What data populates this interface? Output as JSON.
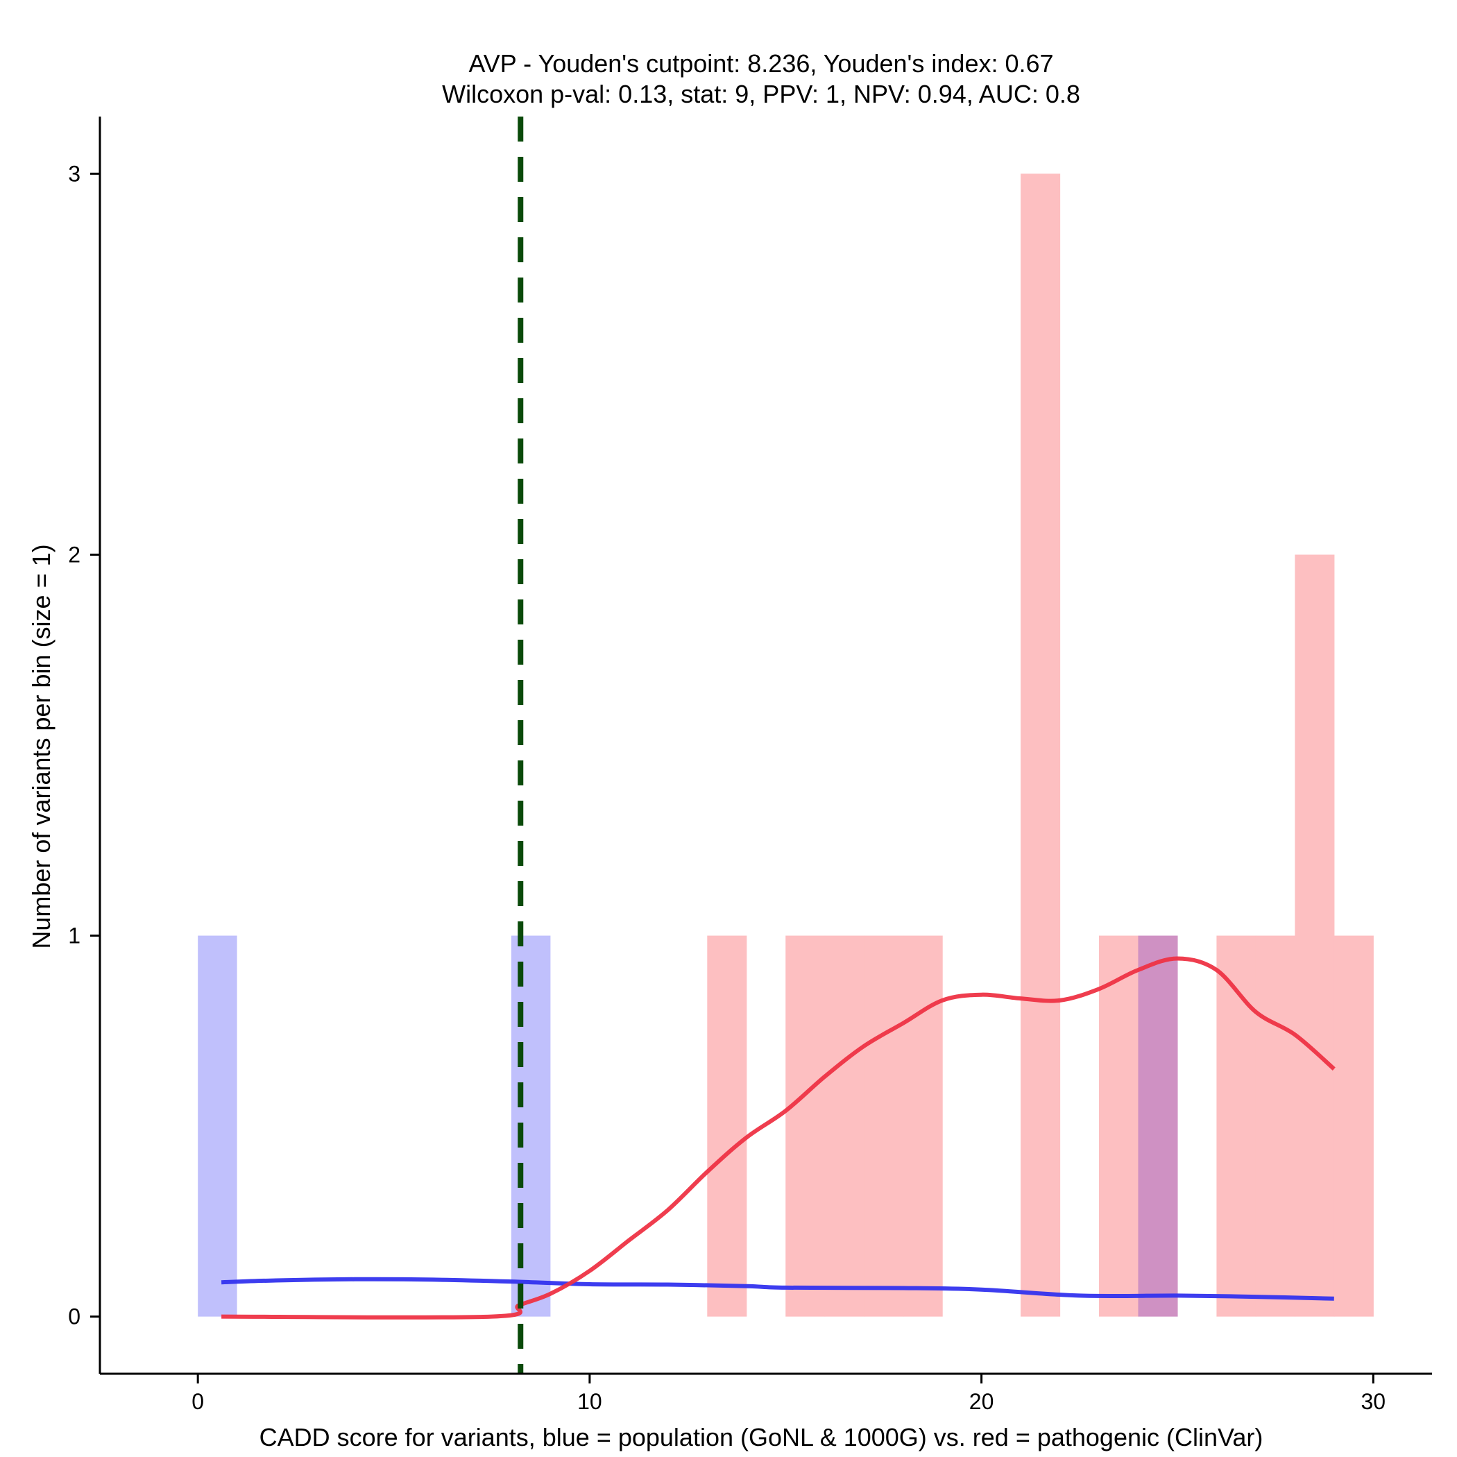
{
  "chart_data": {
    "type": "bar",
    "title_line1": "AVP - Youden's cutpoint: 8.236, Youden's index: 0.67",
    "title_line2": "Wilcoxon p-val: 0.13, stat: 9, PPV: 1, NPV: 0.94, AUC: 0.8",
    "xlabel": "CADD score for variants, blue = population (GoNL & 1000G) vs. red = pathogenic (ClinVar)",
    "ylabel": "Number of variants per bin (size = 1)",
    "xlim": [
      -2.5,
      31.5
    ],
    "ylim": [
      -0.15,
      3.15
    ],
    "x_ticks": [
      0,
      10,
      20,
      30
    ],
    "x_tick_labels": [
      "0",
      "10",
      "20",
      "30"
    ],
    "y_ticks": [
      0,
      1,
      2,
      3
    ],
    "y_tick_labels": [
      "0",
      "1",
      "2",
      "3"
    ],
    "cutpoint": 8.236,
    "colors": {
      "population_bar": "#c0c0fc",
      "pathogenic_bar": "#fdbfc1",
      "overlap_bar": "#cf91c3",
      "population_line": "#3333ee",
      "pathogenic_line": "#ee3344",
      "cutpoint_line": "#0a4a0a"
    },
    "series": [
      {
        "name": "population (GoNL & 1000G)",
        "bins": [
          {
            "start": 0,
            "end": 1,
            "count": 1
          },
          {
            "start": 8,
            "end": 9,
            "count": 1
          },
          {
            "start": 24,
            "end": 25,
            "count": 1
          }
        ]
      },
      {
        "name": "pathogenic (ClinVar)",
        "bins": [
          {
            "start": 13,
            "end": 14,
            "count": 1
          },
          {
            "start": 15,
            "end": 16,
            "count": 1
          },
          {
            "start": 16,
            "end": 17,
            "count": 1
          },
          {
            "start": 17,
            "end": 18,
            "count": 1
          },
          {
            "start": 18,
            "end": 19,
            "count": 1
          },
          {
            "start": 21,
            "end": 22,
            "count": 3
          },
          {
            "start": 23,
            "end": 24,
            "count": 1
          },
          {
            "start": 24,
            "end": 25,
            "count": 1
          },
          {
            "start": 26,
            "end": 27,
            "count": 1
          },
          {
            "start": 27,
            "end": 28,
            "count": 1
          },
          {
            "start": 28,
            "end": 29,
            "count": 2
          },
          {
            "start": 29,
            "end": 30,
            "count": 1
          }
        ]
      }
    ],
    "smooth_lines": [
      {
        "name": "population density",
        "points": [
          [
            0.6,
            0.09
          ],
          [
            2,
            0.095
          ],
          [
            4,
            0.098
          ],
          [
            6,
            0.097
          ],
          [
            8,
            0.092
          ],
          [
            10,
            0.085
          ],
          [
            12,
            0.084
          ],
          [
            14,
            0.08
          ],
          [
            15,
            0.076
          ],
          [
            18,
            0.075
          ],
          [
            20,
            0.071
          ],
          [
            22.5,
            0.055
          ],
          [
            25,
            0.055
          ],
          [
            27,
            0.052
          ],
          [
            29,
            0.047
          ]
        ]
      },
      {
        "name": "pathogenic density",
        "points": [
          [
            0.6,
            0
          ],
          [
            7.5,
            0
          ],
          [
            8.2,
            0.03
          ],
          [
            9,
            0.06
          ],
          [
            10,
            0.12
          ],
          [
            11,
            0.2
          ],
          [
            12,
            0.28
          ],
          [
            13,
            0.38
          ],
          [
            14,
            0.47
          ],
          [
            15,
            0.54
          ],
          [
            16,
            0.63
          ],
          [
            17,
            0.71
          ],
          [
            18,
            0.77
          ],
          [
            19,
            0.83
          ],
          [
            20,
            0.845
          ],
          [
            21,
            0.835
          ],
          [
            22,
            0.83
          ],
          [
            23,
            0.86
          ],
          [
            24,
            0.91
          ],
          [
            25,
            0.94
          ],
          [
            26,
            0.91
          ],
          [
            27,
            0.8
          ],
          [
            28,
            0.74
          ],
          [
            29,
            0.65
          ]
        ]
      }
    ]
  }
}
